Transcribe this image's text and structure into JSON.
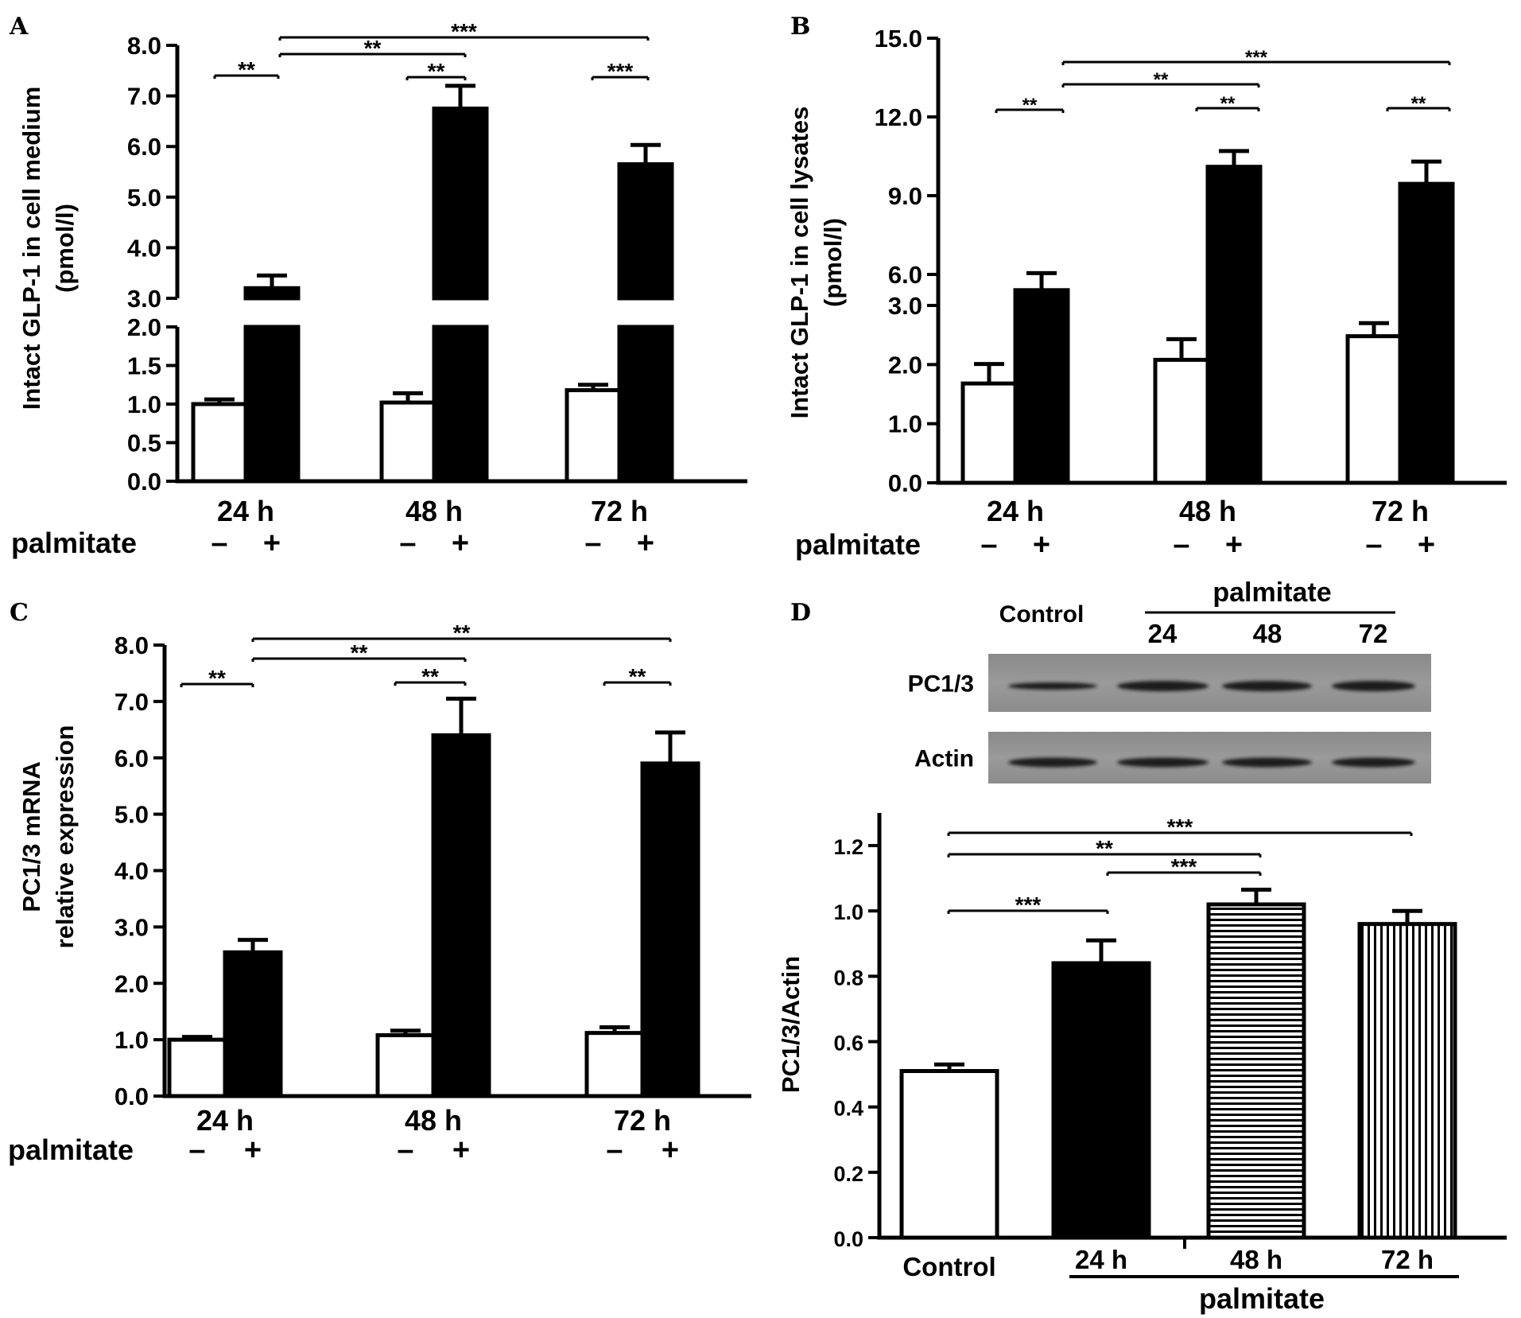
{
  "chart_data": [
    {
      "panel": "A",
      "type": "bar",
      "ylabel_line1": "Intact GLP-1 in cell medium",
      "ylabel_line2": "(pmol/l)",
      "broken_axis": {
        "lower": [
          0,
          2.0
        ],
        "upper": [
          3.0,
          8.0
        ]
      },
      "yticks_lower": [
        "0.0",
        "0.5",
        "1.0",
        "1.5",
        "2.0"
      ],
      "yticks_upper": [
        "3.0",
        "4.0",
        "5.0",
        "6.0",
        "7.0",
        "8.0"
      ],
      "categories": [
        "24 h",
        "48 h",
        "72 h"
      ],
      "treatment_label": "palmitate",
      "treatment_signs": [
        "–",
        "+"
      ],
      "series": [
        {
          "treatment": "–",
          "fill": "white",
          "values": [
            1.0,
            1.02,
            1.18
          ],
          "errors": [
            0.06,
            0.12,
            0.07
          ]
        },
        {
          "treatment": "+",
          "fill": "black",
          "values": [
            3.2,
            6.75,
            5.65
          ],
          "errors": [
            0.25,
            0.45,
            0.38
          ]
        }
      ],
      "significance": [
        "**",
        "**",
        "***",
        "**",
        "***"
      ]
    },
    {
      "panel": "B",
      "type": "bar",
      "ylabel_line1": "Intact GLP-1 in cell lysates",
      "ylabel_line2": "(pmol/l)",
      "broken_axis": {
        "lower": [
          0,
          3.0
        ],
        "upper": [
          3.0,
          15.0
        ]
      },
      "yticks_lower": [
        "0.0",
        "1.0",
        "2.0",
        "3.0"
      ],
      "yticks_upper": [
        "6.0",
        "9.0",
        "12.0",
        "15.0"
      ],
      "categories": [
        "24 h",
        "48 h",
        "72 h"
      ],
      "treatment_label": "palmitate",
      "treatment_signs": [
        "–",
        "+"
      ],
      "series": [
        {
          "treatment": "–",
          "fill": "white",
          "values": [
            1.68,
            2.08,
            2.48
          ],
          "errors": [
            0.33,
            0.35,
            0.22
          ]
        },
        {
          "treatment": "+",
          "fill": "black",
          "values": [
            5.4,
            10.1,
            9.45
          ],
          "errors": [
            0.65,
            0.6,
            0.85
          ]
        }
      ],
      "significance": [
        "**",
        "**",
        "***",
        "**",
        "**"
      ]
    },
    {
      "panel": "C",
      "type": "bar",
      "ylabel_line1": "PC1/3 mRNA",
      "ylabel_line2": "relative expression",
      "ylim": [
        0,
        8.0
      ],
      "yticks": [
        "0.0",
        "1.0",
        "2.0",
        "3.0",
        "4.0",
        "5.0",
        "6.0",
        "7.0",
        "8.0"
      ],
      "categories": [
        "24 h",
        "48 h",
        "72 h"
      ],
      "treatment_label": "palmitate",
      "treatment_signs": [
        "–",
        "+"
      ],
      "series": [
        {
          "treatment": "–",
          "fill": "white",
          "values": [
            1.0,
            1.08,
            1.12
          ],
          "errors": [
            0.05,
            0.08,
            0.1
          ]
        },
        {
          "treatment": "+",
          "fill": "black",
          "values": [
            2.55,
            6.4,
            5.9
          ],
          "errors": [
            0.22,
            0.65,
            0.55
          ]
        }
      ],
      "significance": [
        "**",
        "**",
        "**",
        "**",
        "**"
      ]
    },
    {
      "panel": "D",
      "type": "bar",
      "ylabel": "PC1/3/Actin",
      "ylim": [
        0,
        1.3
      ],
      "yticks": [
        "0.0",
        "0.2",
        "0.4",
        "0.6",
        "0.8",
        "1.0",
        "1.2"
      ],
      "categories": [
        "Control",
        "24 h",
        "48 h",
        "72 h"
      ],
      "group_label": "palmitate",
      "values": [
        0.51,
        0.84,
        1.02,
        0.96
      ],
      "errors": [
        0.02,
        0.07,
        0.045,
        0.04
      ],
      "fills": [
        "white",
        "black",
        "horizontal-stripes",
        "vertical-stripes"
      ],
      "significance": [
        "***",
        "***",
        "**",
        "***"
      ],
      "blot": {
        "lanes_header_control": "Control",
        "lanes_header_group": "palmitate",
        "lane_labels": [
          "24",
          "48",
          "72"
        ],
        "rows": [
          "PC1/3",
          "Actin"
        ]
      }
    }
  ]
}
